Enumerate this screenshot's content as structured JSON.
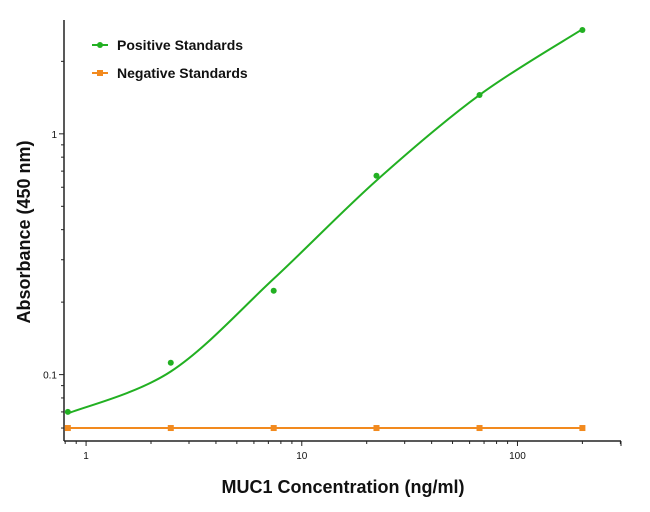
{
  "chart_data": {
    "type": "line",
    "title": "",
    "xlabel": "MUC1 Concentration (ng/ml)",
    "ylabel": "Absorbance (450 nm)",
    "x_scale": "log",
    "y_scale": "log",
    "xlim": [
      0.79,
      302
    ],
    "ylim": [
      0.053,
      2.97
    ],
    "x_ticks": [
      {
        "value": 1,
        "label": "1"
      },
      {
        "value": 10,
        "label": "10"
      },
      {
        "value": 100,
        "label": "100"
      }
    ],
    "y_ticks": [
      {
        "value": 0.1,
        "label": "0.1"
      },
      {
        "value": 1,
        "label": "1"
      }
    ],
    "grid": false,
    "legend_position": "top-left",
    "series": [
      {
        "name": "Positive Standards",
        "color": "#22b022",
        "marker": "circle",
        "x": [
          0.823,
          2.47,
          7.41,
          22.2,
          66.7,
          200
        ],
        "y": [
          0.07,
          0.112,
          0.223,
          0.67,
          1.45,
          2.7
        ],
        "fit_curve": {
          "x": [
            0.823,
            2.47,
            7.41,
            22.2,
            66.7,
            200
          ],
          "y": [
            0.069,
            0.103,
            0.25,
            0.64,
            1.45,
            2.72
          ]
        }
      },
      {
        "name": "Negative Standards",
        "color": "#f28a1e",
        "marker": "square",
        "x": [
          0.823,
          2.47,
          7.41,
          22.2,
          66.7,
          200
        ],
        "y": [
          0.06,
          0.06,
          0.06,
          0.06,
          0.06,
          0.06
        ]
      }
    ]
  }
}
